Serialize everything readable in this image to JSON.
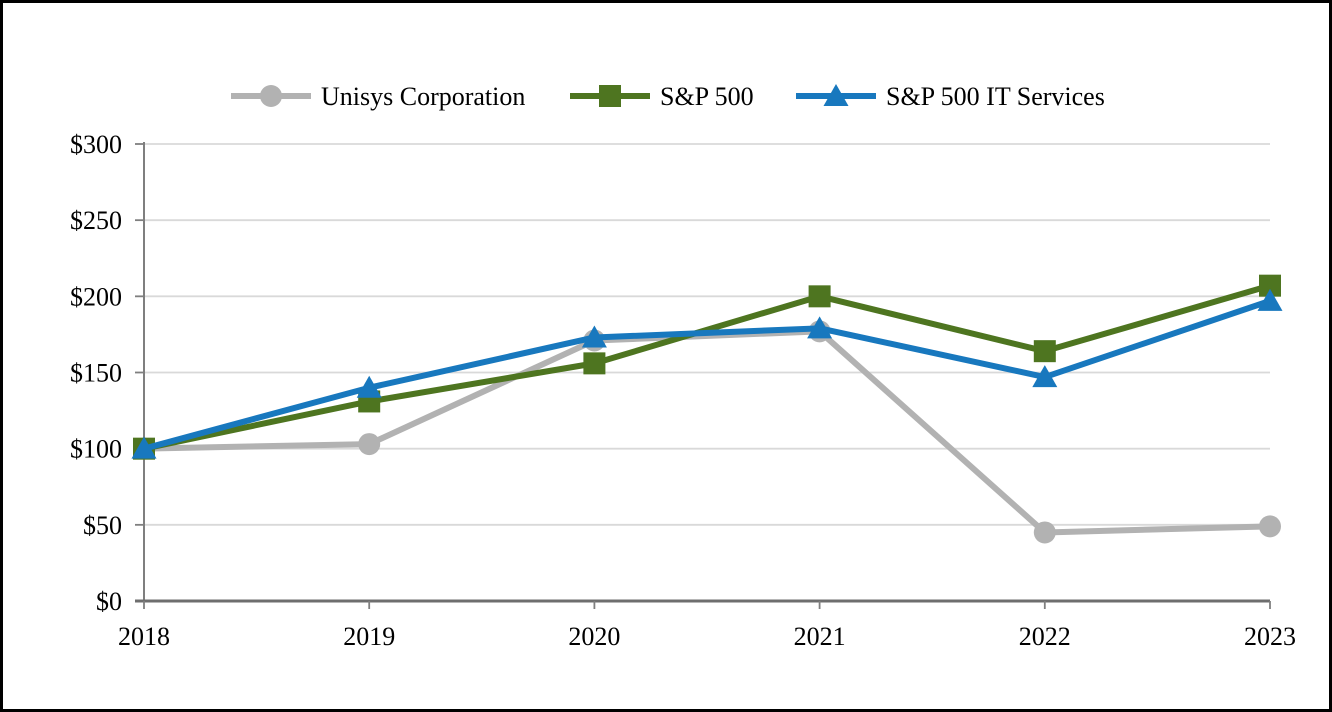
{
  "chart_data": {
    "type": "line",
    "title": "",
    "x": [
      2018,
      2019,
      2020,
      2021,
      2022,
      2023
    ],
    "x_tick_labels": [
      "2018",
      "2019",
      "2020",
      "2021",
      "2022",
      "2023"
    ],
    "y_ticks": [
      0,
      50,
      100,
      150,
      200,
      250,
      300
    ],
    "y_tick_labels": [
      "$0",
      "$50",
      "$100",
      "$150",
      "$200",
      "$250",
      "$300"
    ],
    "ylim": [
      0,
      300
    ],
    "grid": "horizontal",
    "legend_position": "top",
    "series": [
      {
        "name": "Unisys Corporation",
        "marker": "circle",
        "color": "#b2b2b2",
        "values": [
          100,
          103,
          171,
          177,
          45,
          49
        ]
      },
      {
        "name": "S&P 500",
        "marker": "square",
        "color": "#4e7520",
        "values": [
          100,
          131,
          156,
          200,
          164,
          207
        ]
      },
      {
        "name": "S&P 500 IT Services",
        "marker": "triangle",
        "color": "#1878be",
        "values": [
          100,
          140,
          173,
          179,
          147,
          197
        ]
      }
    ],
    "colors": {
      "axis": "#7f7f7f",
      "gridline": "#d9d9d9",
      "frame_border": "#000000",
      "background": "#ffffff"
    }
  }
}
